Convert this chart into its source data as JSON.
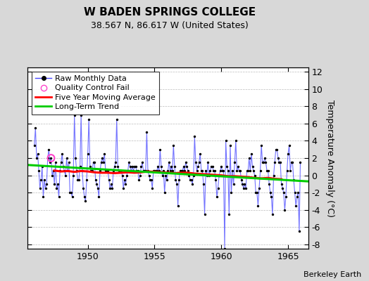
{
  "title": "W BADEN SPRINGS COLLEGE",
  "subtitle": "38.567 N, 86.617 W (United States)",
  "ylabel": "Temperature Anomaly (°C)",
  "credit": "Berkeley Earth",
  "xlim": [
    1945.5,
    1966.5
  ],
  "ylim": [
    -8.5,
    12.5
  ],
  "yticks": [
    -8,
    -6,
    -4,
    -2,
    0,
    2,
    4,
    6,
    8,
    10,
    12
  ],
  "xticks": [
    1950,
    1955,
    1960,
    1965
  ],
  "bg_color": "#d8d8d8",
  "plot_bg_color": "#ffffff",
  "raw_line_color": "#4444ff",
  "raw_dot_color": "#000000",
  "ma_color": "#ff0000",
  "trend_color": "#00cc00",
  "qc_color": "#ff44cc",
  "raw_data_x": [
    1946.0,
    1946.083,
    1946.167,
    1946.25,
    1946.333,
    1946.417,
    1946.5,
    1946.583,
    1946.667,
    1946.75,
    1946.833,
    1946.917,
    1947.0,
    1947.083,
    1947.167,
    1947.25,
    1947.333,
    1947.417,
    1947.5,
    1947.583,
    1947.667,
    1947.75,
    1947.833,
    1947.917,
    1948.0,
    1948.083,
    1948.167,
    1948.25,
    1948.333,
    1948.417,
    1948.5,
    1948.583,
    1948.667,
    1948.75,
    1948.833,
    1948.917,
    1949.0,
    1949.083,
    1949.167,
    1949.25,
    1949.333,
    1949.417,
    1949.5,
    1949.583,
    1949.667,
    1949.75,
    1949.833,
    1949.917,
    1950.0,
    1950.083,
    1950.167,
    1950.25,
    1950.333,
    1950.417,
    1950.5,
    1950.583,
    1950.667,
    1950.75,
    1950.833,
    1950.917,
    1951.0,
    1951.083,
    1951.167,
    1951.25,
    1951.333,
    1951.417,
    1951.5,
    1951.583,
    1951.667,
    1951.75,
    1951.833,
    1951.917,
    1952.0,
    1952.083,
    1952.167,
    1952.25,
    1952.333,
    1952.417,
    1952.5,
    1952.583,
    1952.667,
    1952.75,
    1952.833,
    1952.917,
    1953.0,
    1953.083,
    1953.167,
    1953.25,
    1953.333,
    1953.417,
    1953.5,
    1953.583,
    1953.667,
    1953.75,
    1953.833,
    1953.917,
    1954.0,
    1954.083,
    1954.167,
    1954.25,
    1954.333,
    1954.417,
    1954.5,
    1954.583,
    1954.667,
    1954.75,
    1954.833,
    1954.917,
    1955.0,
    1955.083,
    1955.167,
    1955.25,
    1955.333,
    1955.417,
    1955.5,
    1955.583,
    1955.667,
    1955.75,
    1955.833,
    1955.917,
    1956.0,
    1956.083,
    1956.167,
    1956.25,
    1956.333,
    1956.417,
    1956.5,
    1956.583,
    1956.667,
    1956.75,
    1956.833,
    1956.917,
    1957.0,
    1957.083,
    1957.167,
    1957.25,
    1957.333,
    1957.417,
    1957.5,
    1957.583,
    1957.667,
    1957.75,
    1957.833,
    1957.917,
    1958.0,
    1958.083,
    1958.167,
    1958.25,
    1958.333,
    1958.417,
    1958.5,
    1958.583,
    1958.667,
    1958.75,
    1958.833,
    1958.917,
    1959.0,
    1959.083,
    1959.167,
    1959.25,
    1959.333,
    1959.417,
    1959.5,
    1959.583,
    1959.667,
    1959.75,
    1959.833,
    1959.917,
    1960.0,
    1960.083,
    1960.167,
    1960.25,
    1960.333,
    1960.417,
    1960.5,
    1960.583,
    1960.667,
    1960.75,
    1960.833,
    1960.917,
    1961.0,
    1961.083,
    1961.167,
    1961.25,
    1961.333,
    1961.417,
    1961.5,
    1961.583,
    1961.667,
    1961.75,
    1961.833,
    1961.917,
    1962.0,
    1962.083,
    1962.167,
    1962.25,
    1962.333,
    1962.417,
    1962.5,
    1962.583,
    1962.667,
    1962.75,
    1962.833,
    1962.917,
    1963.0,
    1963.083,
    1963.167,
    1963.25,
    1963.333,
    1963.417,
    1963.5,
    1963.583,
    1963.667,
    1963.75,
    1963.833,
    1963.917,
    1964.0,
    1964.083,
    1964.167,
    1964.25,
    1964.333,
    1964.417,
    1964.5,
    1964.583,
    1964.667,
    1964.75,
    1964.833,
    1964.917,
    1965.0,
    1965.083,
    1965.167,
    1965.25,
    1965.333,
    1965.417,
    1965.5,
    1965.583,
    1965.667,
    1965.75,
    1965.833,
    1965.917
  ],
  "raw_data_y": [
    3.5,
    5.5,
    2.0,
    2.5,
    0.5,
    -1.5,
    -0.5,
    1.0,
    -2.5,
    -0.5,
    -1.5,
    -1.0,
    2.0,
    3.0,
    1.5,
    2.0,
    0.0,
    0.5,
    -1.0,
    1.5,
    -1.5,
    -1.0,
    -2.5,
    0.5,
    1.5,
    2.5,
    1.0,
    0.5,
    0.0,
    2.0,
    0.5,
    1.5,
    -2.0,
    -2.0,
    -2.5,
    0.0,
    7.0,
    2.0,
    0.5,
    -0.5,
    -0.5,
    1.0,
    7.0,
    0.5,
    -1.5,
    -2.5,
    -3.0,
    -0.5,
    2.5,
    6.5,
    1.0,
    0.5,
    0.5,
    1.5,
    1.5,
    -0.5,
    -1.0,
    -1.5,
    -2.5,
    0.5,
    1.5,
    2.0,
    1.5,
    2.5,
    0.5,
    0.5,
    0.5,
    -0.5,
    -1.5,
    -1.0,
    -1.5,
    0.5,
    1.0,
    1.5,
    6.5,
    1.0,
    0.5,
    0.5,
    0.5,
    0.0,
    -1.5,
    -0.5,
    -1.0,
    0.0,
    0.5,
    1.5,
    1.0,
    0.5,
    1.0,
    0.5,
    1.0,
    1.0,
    0.5,
    0.5,
    -0.5,
    0.0,
    1.0,
    1.5,
    0.5,
    0.5,
    0.5,
    5.0,
    0.5,
    0.0,
    -0.5,
    -0.5,
    -1.5,
    0.5,
    0.5,
    0.5,
    0.5,
    1.0,
    0.5,
    3.0,
    1.0,
    0.0,
    0.5,
    -2.0,
    0.0,
    -0.5,
    0.5,
    1.5,
    0.5,
    1.0,
    0.5,
    3.5,
    1.0,
    -0.5,
    -1.0,
    -3.5,
    -0.5,
    0.5,
    0.5,
    0.5,
    1.0,
    0.5,
    1.5,
    1.0,
    0.5,
    0.0,
    -0.5,
    -0.5,
    -1.0,
    0.0,
    4.5,
    1.5,
    0.5,
    1.0,
    1.5,
    2.5,
    0.5,
    0.5,
    -1.0,
    -4.5,
    0.5,
    0.0,
    1.5,
    0.0,
    0.5,
    1.0,
    1.0,
    0.5,
    0.5,
    -0.5,
    -2.5,
    -1.5,
    0.0,
    0.5,
    1.0,
    0.5,
    0.5,
    -8.5,
    4.0,
    1.0,
    0.5,
    -4.5,
    3.5,
    -2.0,
    0.5,
    -1.0,
    1.5,
    4.0,
    0.5,
    1.0,
    0.5,
    0.5,
    -0.5,
    -1.0,
    -1.5,
    -1.0,
    -1.5,
    0.5,
    0.5,
    2.0,
    0.5,
    2.5,
    1.0,
    0.5,
    0.0,
    -2.0,
    -2.0,
    -3.5,
    -1.5,
    0.5,
    3.5,
    1.5,
    1.5,
    2.0,
    1.5,
    0.5,
    0.5,
    -1.0,
    -2.0,
    -2.5,
    -4.5,
    0.0,
    1.5,
    3.0,
    3.0,
    2.0,
    1.5,
    1.5,
    -1.0,
    -1.5,
    -2.0,
    -4.0,
    -2.5,
    0.5,
    2.5,
    3.5,
    0.5,
    1.5,
    1.5,
    -0.5,
    -2.0,
    -3.5,
    -2.5,
    -2.0,
    -6.5,
    1.5
  ],
  "qc_x": [
    1947.25
  ],
  "qc_y": [
    2.0
  ],
  "ma_x": [
    1947.5,
    1948.0,
    1948.5,
    1949.0,
    1949.5,
    1950.0,
    1950.5,
    1951.0,
    1951.5,
    1952.0,
    1952.5,
    1953.0,
    1953.5,
    1954.0,
    1954.5,
    1955.0,
    1955.5,
    1956.0,
    1956.5,
    1957.0,
    1957.5,
    1958.0,
    1958.5,
    1959.0,
    1959.5,
    1960.0,
    1960.5,
    1961.0,
    1961.5,
    1962.0,
    1962.5,
    1963.0,
    1963.5,
    1964.0,
    1964.5
  ],
  "ma_y": [
    0.55,
    0.45,
    0.5,
    0.4,
    0.5,
    0.45,
    0.35,
    0.3,
    0.3,
    0.25,
    0.3,
    0.35,
    0.3,
    0.35,
    0.45,
    0.4,
    0.35,
    0.3,
    0.25,
    0.3,
    0.3,
    0.2,
    0.15,
    0.1,
    0.05,
    0.0,
    -0.1,
    -0.1,
    -0.15,
    -0.2,
    -0.3,
    -0.35,
    -0.3,
    -0.4,
    -0.45
  ],
  "trend_x": [
    1945.5,
    1966.5
  ],
  "trend_y": [
    1.2,
    -0.7
  ],
  "legend_raw": "Raw Monthly Data",
  "legend_qc": "Quality Control Fail",
  "legend_ma": "Five Year Moving Average",
  "legend_trend": "Long-Term Trend",
  "title_fontsize": 11,
  "subtitle_fontsize": 9,
  "tick_fontsize": 9,
  "ylabel_fontsize": 9,
  "legend_fontsize": 8,
  "credit_fontsize": 8
}
